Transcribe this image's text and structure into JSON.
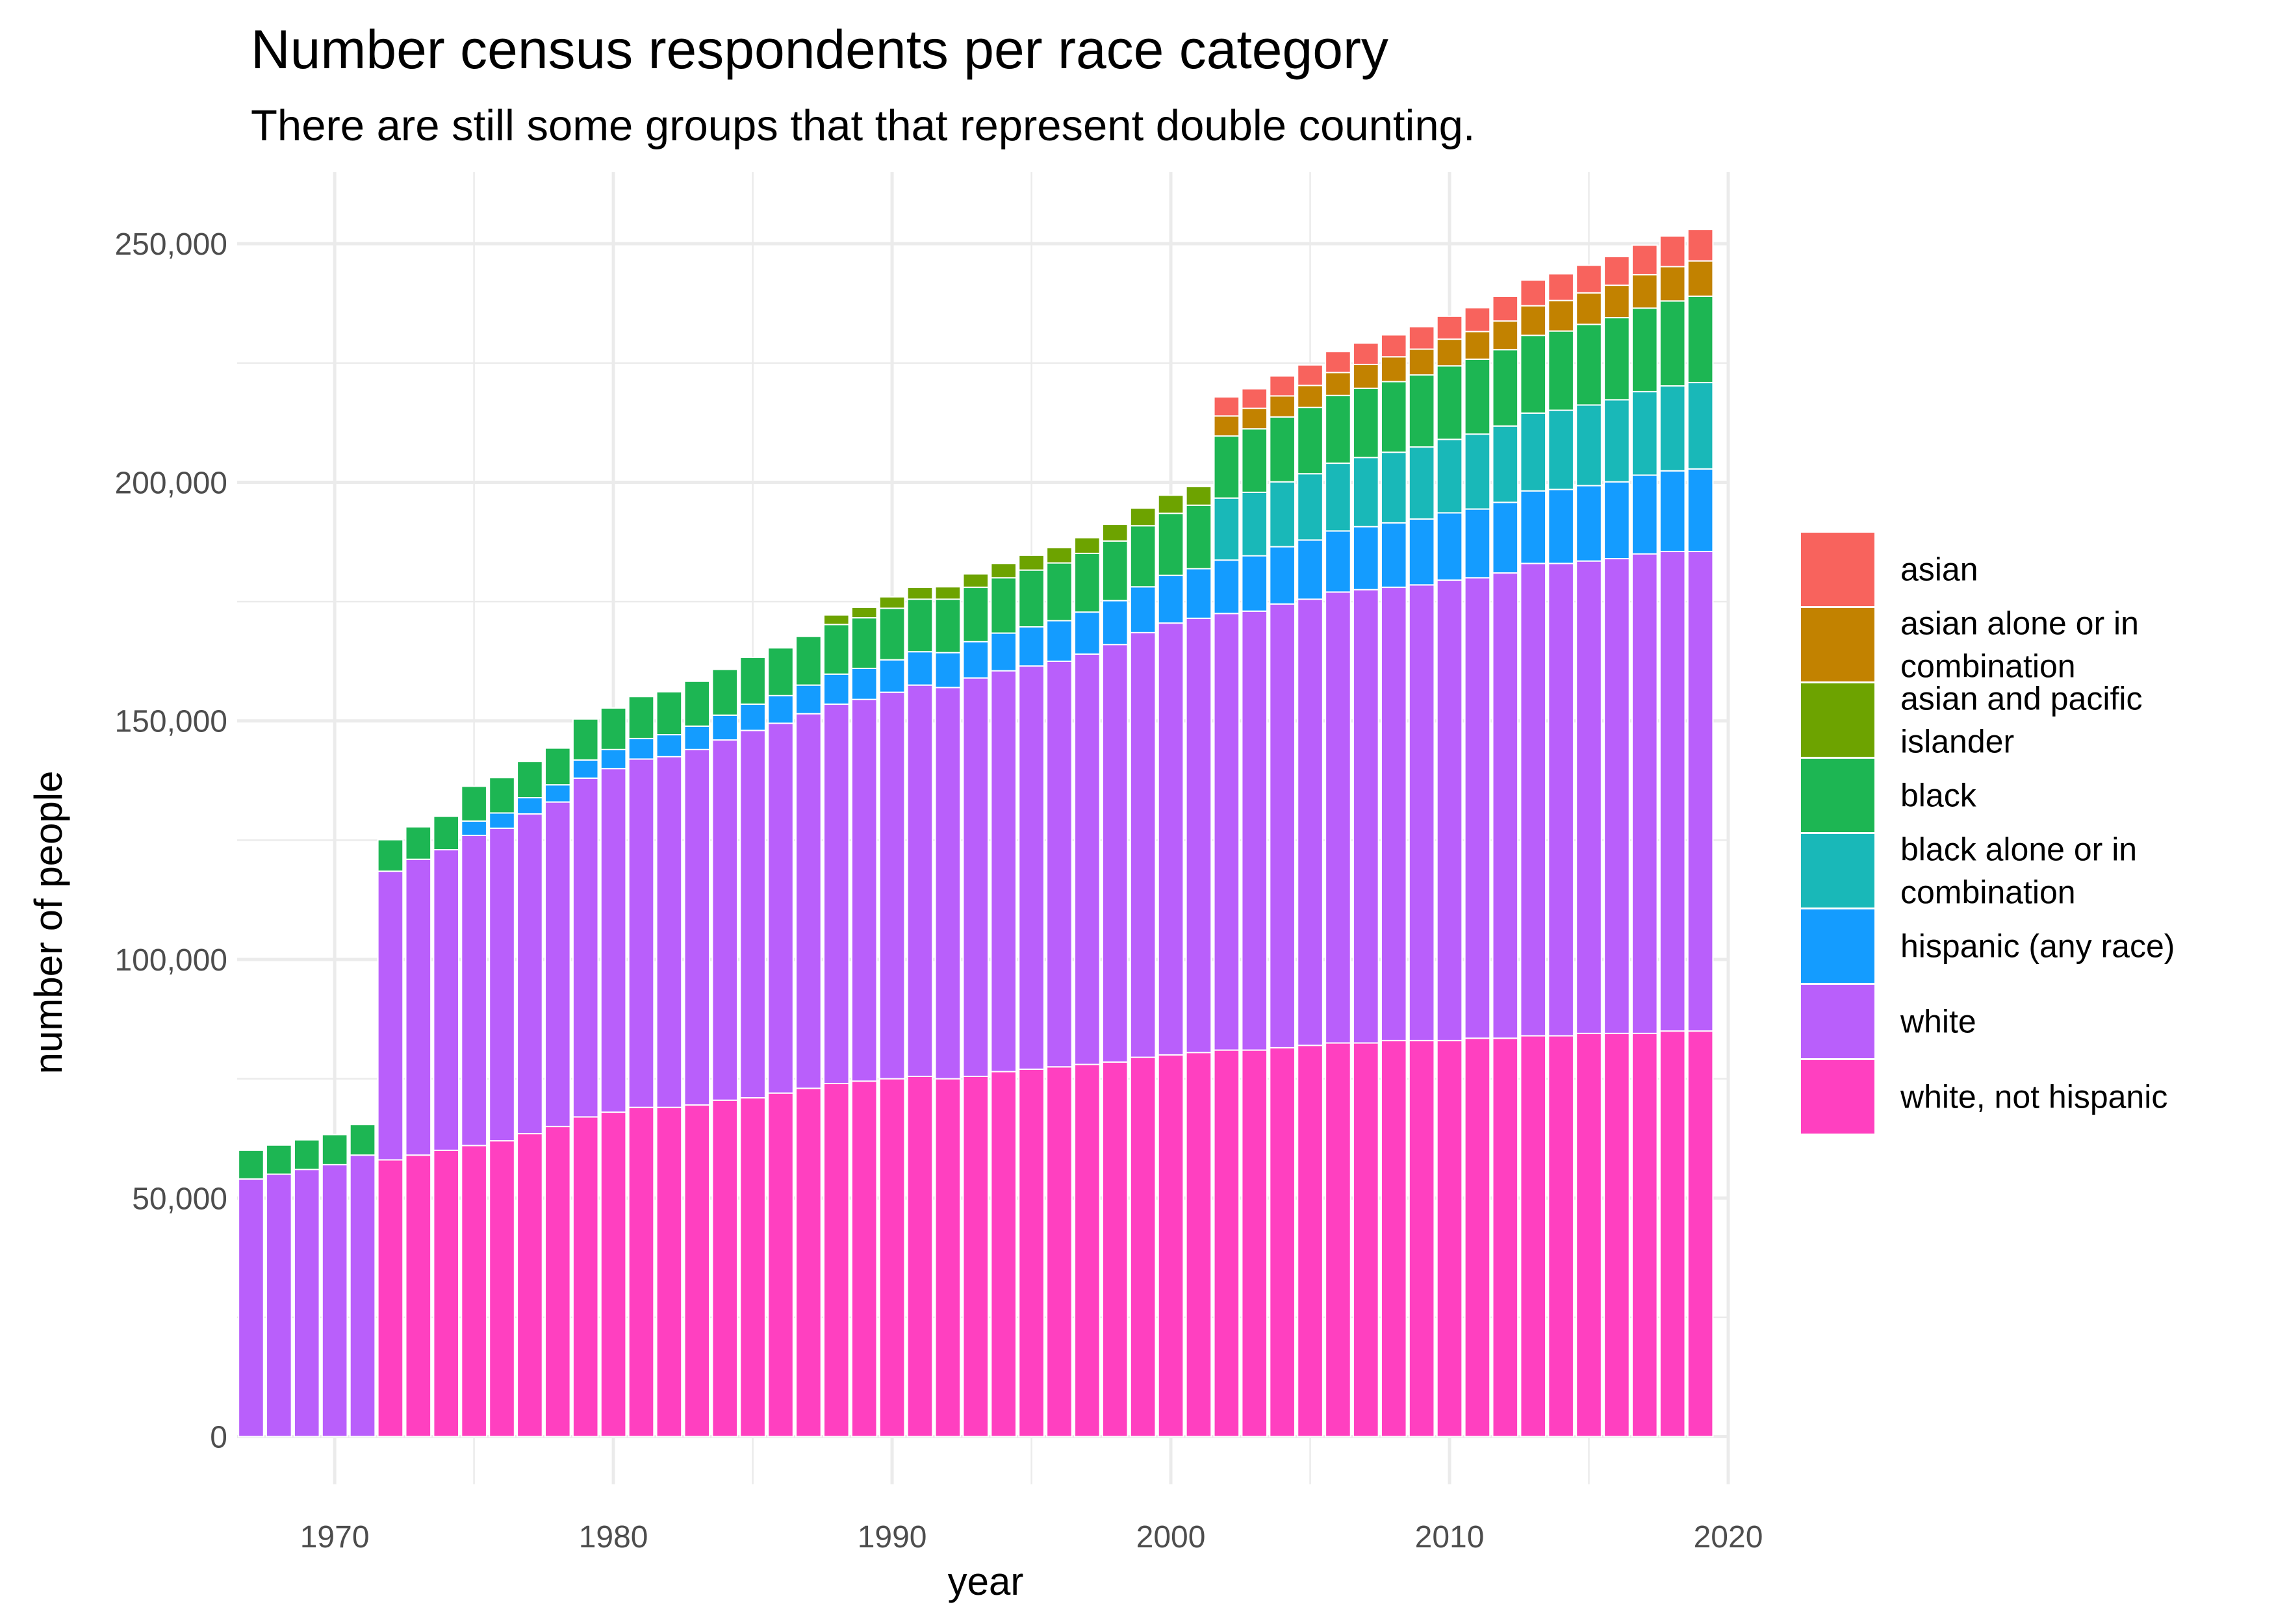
{
  "chart_data": {
    "type": "bar",
    "stacked": true,
    "title": "Number census respondents per race category",
    "subtitle": "There are still some groups that that represent double counting.",
    "xlabel": "year",
    "ylabel": "number of people",
    "xlim": [
      1966.5,
      2020
    ],
    "ylim": [
      -10000,
      265000
    ],
    "x_ticks": [
      1970,
      1980,
      1990,
      2000,
      2010,
      2020
    ],
    "y_ticks": [
      0,
      50000,
      100000,
      150000,
      200000,
      250000
    ],
    "y_tick_labels": [
      "0",
      "50,000",
      "100,000",
      "150,000",
      "200,000",
      "250,000"
    ],
    "grid": true,
    "legend_position": "right",
    "x": [
      1967,
      1968,
      1969,
      1970,
      1971,
      1972,
      1973,
      1974,
      1975,
      1976,
      1977,
      1978,
      1979,
      1980,
      1981,
      1982,
      1983,
      1984,
      1985,
      1986,
      1987,
      1988,
      1989,
      1990,
      1991,
      1992,
      1993,
      1994,
      1995,
      1996,
      1997,
      1998,
      1999,
      2000,
      2001,
      2002,
      2003,
      2004,
      2005,
      2006,
      2007,
      2008,
      2009,
      2010,
      2011,
      2012,
      2013,
      2014,
      2015,
      2016,
      2017,
      2018,
      2019
    ],
    "series": [
      {
        "name": "white, not hispanic",
        "color": "#FF40C0",
        "values": [
          0,
          0,
          0,
          0,
          0,
          58000,
          59000,
          60000,
          61000,
          62000,
          63500,
          65000,
          67000,
          68000,
          69000,
          69000,
          69500,
          70500,
          71000,
          72000,
          73000,
          74000,
          74500,
          75000,
          75500,
          75000,
          75500,
          76500,
          77000,
          77500,
          78000,
          78500,
          79500,
          80000,
          80500,
          81000,
          81000,
          81500,
          82000,
          82500,
          82500,
          83000,
          83000,
          83000,
          83500,
          83500,
          84000,
          84000,
          84500,
          84500,
          84500,
          85000,
          85000
        ]
      },
      {
        "name": "white",
        "color": "#B95FFB",
        "values": [
          54000,
          55000,
          56000,
          57000,
          59000,
          60500,
          62000,
          63000,
          65000,
          65500,
          67000,
          68000,
          71000,
          72000,
          73000,
          73500,
          74500,
          75500,
          77000,
          77500,
          78500,
          79500,
          80000,
          81000,
          82000,
          82000,
          83500,
          84000,
          84500,
          85000,
          86000,
          87500,
          89000,
          90500,
          91000,
          91500,
          92000,
          93000,
          93500,
          94500,
          95000,
          95000,
          95500,
          96500,
          96500,
          97500,
          99000,
          99000,
          99000,
          99500,
          100500,
          100500,
          100500
        ]
      },
      {
        "name": "hispanic (any race)",
        "color": "#149CFF",
        "values": [
          0,
          0,
          0,
          0,
          0,
          0,
          0,
          0,
          3000,
          3200,
          3400,
          3600,
          3800,
          4000,
          4300,
          4600,
          4900,
          5200,
          5500,
          5800,
          6000,
          6300,
          6500,
          6800,
          7000,
          7300,
          7600,
          7900,
          8200,
          8500,
          8800,
          9200,
          9600,
          10000,
          10400,
          11200,
          11600,
          12000,
          12400,
          12800,
          13200,
          13500,
          13800,
          14100,
          14400,
          14800,
          15200,
          15500,
          15800,
          16100,
          16500,
          16900,
          17300
        ]
      },
      {
        "name": "black alone or in combination",
        "color": "#19B8B8",
        "values": [
          0,
          0,
          0,
          0,
          0,
          0,
          0,
          0,
          0,
          0,
          0,
          0,
          0,
          0,
          0,
          0,
          0,
          0,
          0,
          0,
          0,
          0,
          0,
          0,
          0,
          0,
          0,
          0,
          0,
          0,
          0,
          0,
          0,
          0,
          0,
          13000,
          13300,
          13600,
          13900,
          14200,
          14500,
          14800,
          15100,
          15400,
          15700,
          16000,
          16300,
          16600,
          16900,
          17200,
          17500,
          17800,
          18100
        ]
      },
      {
        "name": "black",
        "color": "#1DB653",
        "values": [
          6000,
          6100,
          6200,
          6300,
          6400,
          6600,
          6800,
          7000,
          7300,
          7400,
          7600,
          7700,
          8600,
          8700,
          8800,
          9000,
          9400,
          9600,
          9800,
          10000,
          10200,
          10400,
          10600,
          10800,
          11000,
          11200,
          11400,
          11600,
          11900,
          12100,
          12300,
          12500,
          12800,
          13000,
          13300,
          13000,
          13300,
          13600,
          13900,
          14200,
          14500,
          14800,
          15100,
          15400,
          15700,
          16000,
          16300,
          16600,
          16900,
          17200,
          17500,
          17800,
          18100
        ]
      },
      {
        "name": "asian and pacific islander",
        "color": "#6DA300",
        "values": [
          0,
          0,
          0,
          0,
          0,
          0,
          0,
          0,
          0,
          0,
          0,
          0,
          0,
          0,
          0,
          0,
          0,
          0,
          0,
          0,
          0,
          2000,
          2200,
          2400,
          2500,
          2600,
          2800,
          3000,
          3100,
          3200,
          3300,
          3500,
          3700,
          3800,
          3900,
          0,
          0,
          0,
          0,
          0,
          0,
          0,
          0,
          0,
          0,
          0,
          0,
          0,
          0,
          0,
          0,
          0,
          0
        ]
      },
      {
        "name": "asian alone or in combination",
        "color": "#C28200",
        "values": [
          0,
          0,
          0,
          0,
          0,
          0,
          0,
          0,
          0,
          0,
          0,
          0,
          0,
          0,
          0,
          0,
          0,
          0,
          0,
          0,
          0,
          0,
          0,
          0,
          0,
          0,
          0,
          0,
          0,
          0,
          0,
          0,
          0,
          0,
          0,
          4200,
          4300,
          4400,
          4600,
          4800,
          5000,
          5200,
          5400,
          5600,
          5800,
          6000,
          6200,
          6400,
          6600,
          6800,
          7000,
          7200,
          7400
        ]
      },
      {
        "name": "asian",
        "color": "#F8635D",
        "values": [
          0,
          0,
          0,
          0,
          0,
          0,
          0,
          0,
          0,
          0,
          0,
          0,
          0,
          0,
          0,
          0,
          0,
          0,
          0,
          0,
          0,
          0,
          0,
          0,
          0,
          0,
          0,
          0,
          0,
          0,
          0,
          0,
          0,
          0,
          0,
          4000,
          4100,
          4200,
          4300,
          4400,
          4500,
          4600,
          4700,
          4800,
          5000,
          5200,
          5400,
          5600,
          5800,
          6000,
          6200,
          6400,
          6600
        ]
      }
    ],
    "legend_order": [
      "asian",
      "asian alone or in combination",
      "asian and pacific islander",
      "black",
      "black alone or in combination",
      "hispanic (any race)",
      "white",
      "white, not hispanic"
    ]
  }
}
